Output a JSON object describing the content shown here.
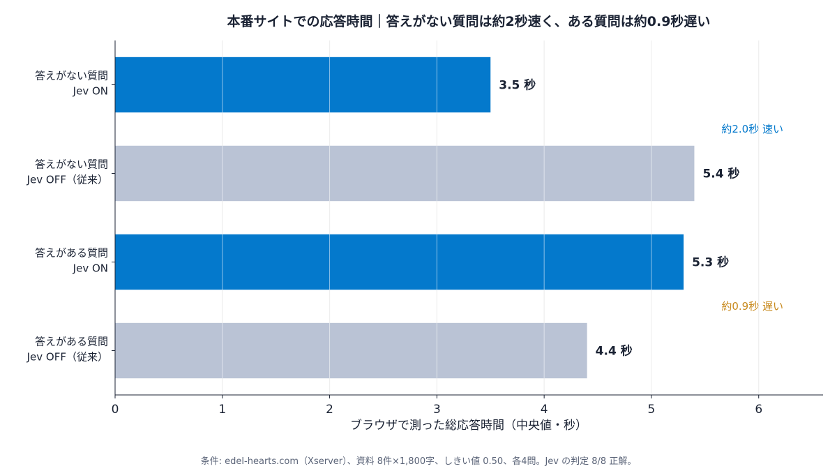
{
  "chart_data": {
    "type": "bar",
    "orientation": "horizontal",
    "title": "本番サイトでの応答時間｜答えがない質問は約2秒速く、ある質問は約0.9秒遅い",
    "xlabel": "ブラウザで測った総応答時間（中央値・秒）",
    "ylabel": "",
    "xlim": [
      0,
      6.6
    ],
    "xticks": [
      0,
      1,
      2,
      3,
      4,
      5,
      6
    ],
    "grid": "vertical",
    "categories": [
      [
        "答えがない質問",
        "Jev ON"
      ],
      [
        "答えがない質問",
        "Jev OFF（従来）"
      ],
      [
        "答えがある質問",
        "Jev ON"
      ],
      [
        "答えがある質問",
        "Jev OFF（従来）"
      ]
    ],
    "values": [
      3.5,
      5.4,
      5.3,
      4.4
    ],
    "value_labels": [
      "3.5 秒",
      "5.4 秒",
      "5.3 秒",
      "4.4 秒"
    ],
    "bar_colors": [
      "#0479cc",
      "#bac3d5",
      "#0479cc",
      "#bac3d5"
    ],
    "annotations": [
      {
        "text": "約2.0秒 速い",
        "color": "#0479cc",
        "between": [
          0,
          1
        ]
      },
      {
        "text": "約0.9秒 遅い",
        "color": "#c88a1e",
        "between": [
          2,
          3
        ]
      }
    ],
    "footnote": "条件: edel-hearts.com（Xserver）、資料 8件×1,800字、しきい値 0.50、各4問。Jev の判定 8/8 正解。"
  }
}
